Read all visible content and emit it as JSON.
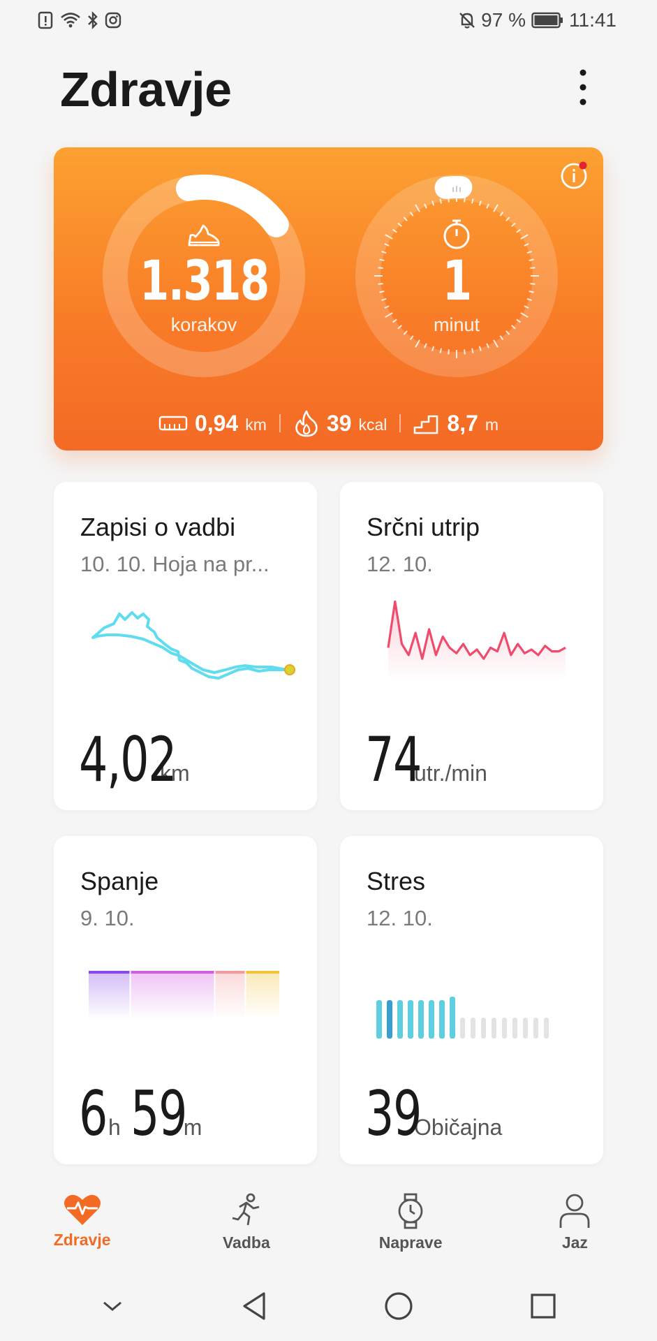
{
  "status_bar": {
    "battery_percent": "97 %",
    "time": "11:41",
    "icons": [
      "alert-icon",
      "wifi-icon",
      "bluetooth-icon",
      "instagram-icon",
      "mute-icon",
      "battery-icon"
    ]
  },
  "header": {
    "title": "Zdravje",
    "more_icon": "more-vertical-icon"
  },
  "activity": {
    "steps": {
      "value": "1.318",
      "label": "korakov",
      "icon": "shoe-icon",
      "progress": 0.18
    },
    "minutes": {
      "value": "1",
      "label": "minut",
      "icon": "stopwatch-icon",
      "progress": 0.05
    },
    "metrics": [
      {
        "icon": "ruler-icon",
        "value": "0,94",
        "unit": "km"
      },
      {
        "icon": "flame-icon",
        "value": "39",
        "unit": "kcal"
      },
      {
        "icon": "stairs-icon",
        "value": "8,7",
        "unit": "m"
      }
    ],
    "info_icon": "info-icon",
    "accent": "#f97d28"
  },
  "tiles": {
    "workout": {
      "title": "Zapisi o vadbi",
      "subtitle": "10. 10. Hoja na pr...",
      "value": "4,02",
      "unit": "km",
      "route_color": "#5fdcf0"
    },
    "heart": {
      "title": "Srčni utrip",
      "subtitle": "12. 10.",
      "value": "74",
      "unit": "utr./min",
      "line_color": "#ef4b6c",
      "chart_data": {
        "type": "line",
        "values": [
          70,
          95,
          72,
          66,
          78,
          64,
          80,
          66,
          76,
          70,
          67,
          72,
          66,
          69,
          64,
          70,
          68,
          78,
          66,
          72,
          67,
          69,
          66,
          71,
          68,
          68,
          70
        ]
      }
    },
    "sleep": {
      "title": "Spanje",
      "subtitle": "9. 10.",
      "hours": "6",
      "h_unit": "h",
      "minutes": "59",
      "m_unit": "m",
      "stages": [
        {
          "name": "deep",
          "color": "#8a48e8",
          "share": 0.22
        },
        {
          "name": "light",
          "color": "#d25ee4",
          "share": 0.44
        },
        {
          "name": "rem",
          "color": "#f39a9a",
          "share": 0.16
        },
        {
          "name": "awake",
          "color": "#f2c43e",
          "share": 0.18
        }
      ]
    },
    "stress": {
      "title": "Stres",
      "subtitle": "12. 10.",
      "value": "39",
      "unit": "Običajna",
      "chart_data": {
        "type": "bar",
        "values": [
          0.55,
          0.55,
          0.55,
          0.55,
          0.55,
          0.55,
          0.55,
          0.6,
          0.3,
          0.3,
          0.3,
          0.3,
          0.3,
          0.3,
          0.3,
          0.3,
          0.3
        ]
      }
    }
  },
  "bottom_nav": [
    {
      "label": "Zdravje",
      "icon": "heart-pulse-icon",
      "active": true
    },
    {
      "label": "Vadba",
      "icon": "runner-icon",
      "active": false
    },
    {
      "label": "Naprave",
      "icon": "watch-icon",
      "active": false
    },
    {
      "label": "Jaz",
      "icon": "person-icon",
      "active": false
    }
  ],
  "system_nav": [
    "chevron-down-icon",
    "back-icon",
    "home-icon",
    "recents-icon"
  ]
}
